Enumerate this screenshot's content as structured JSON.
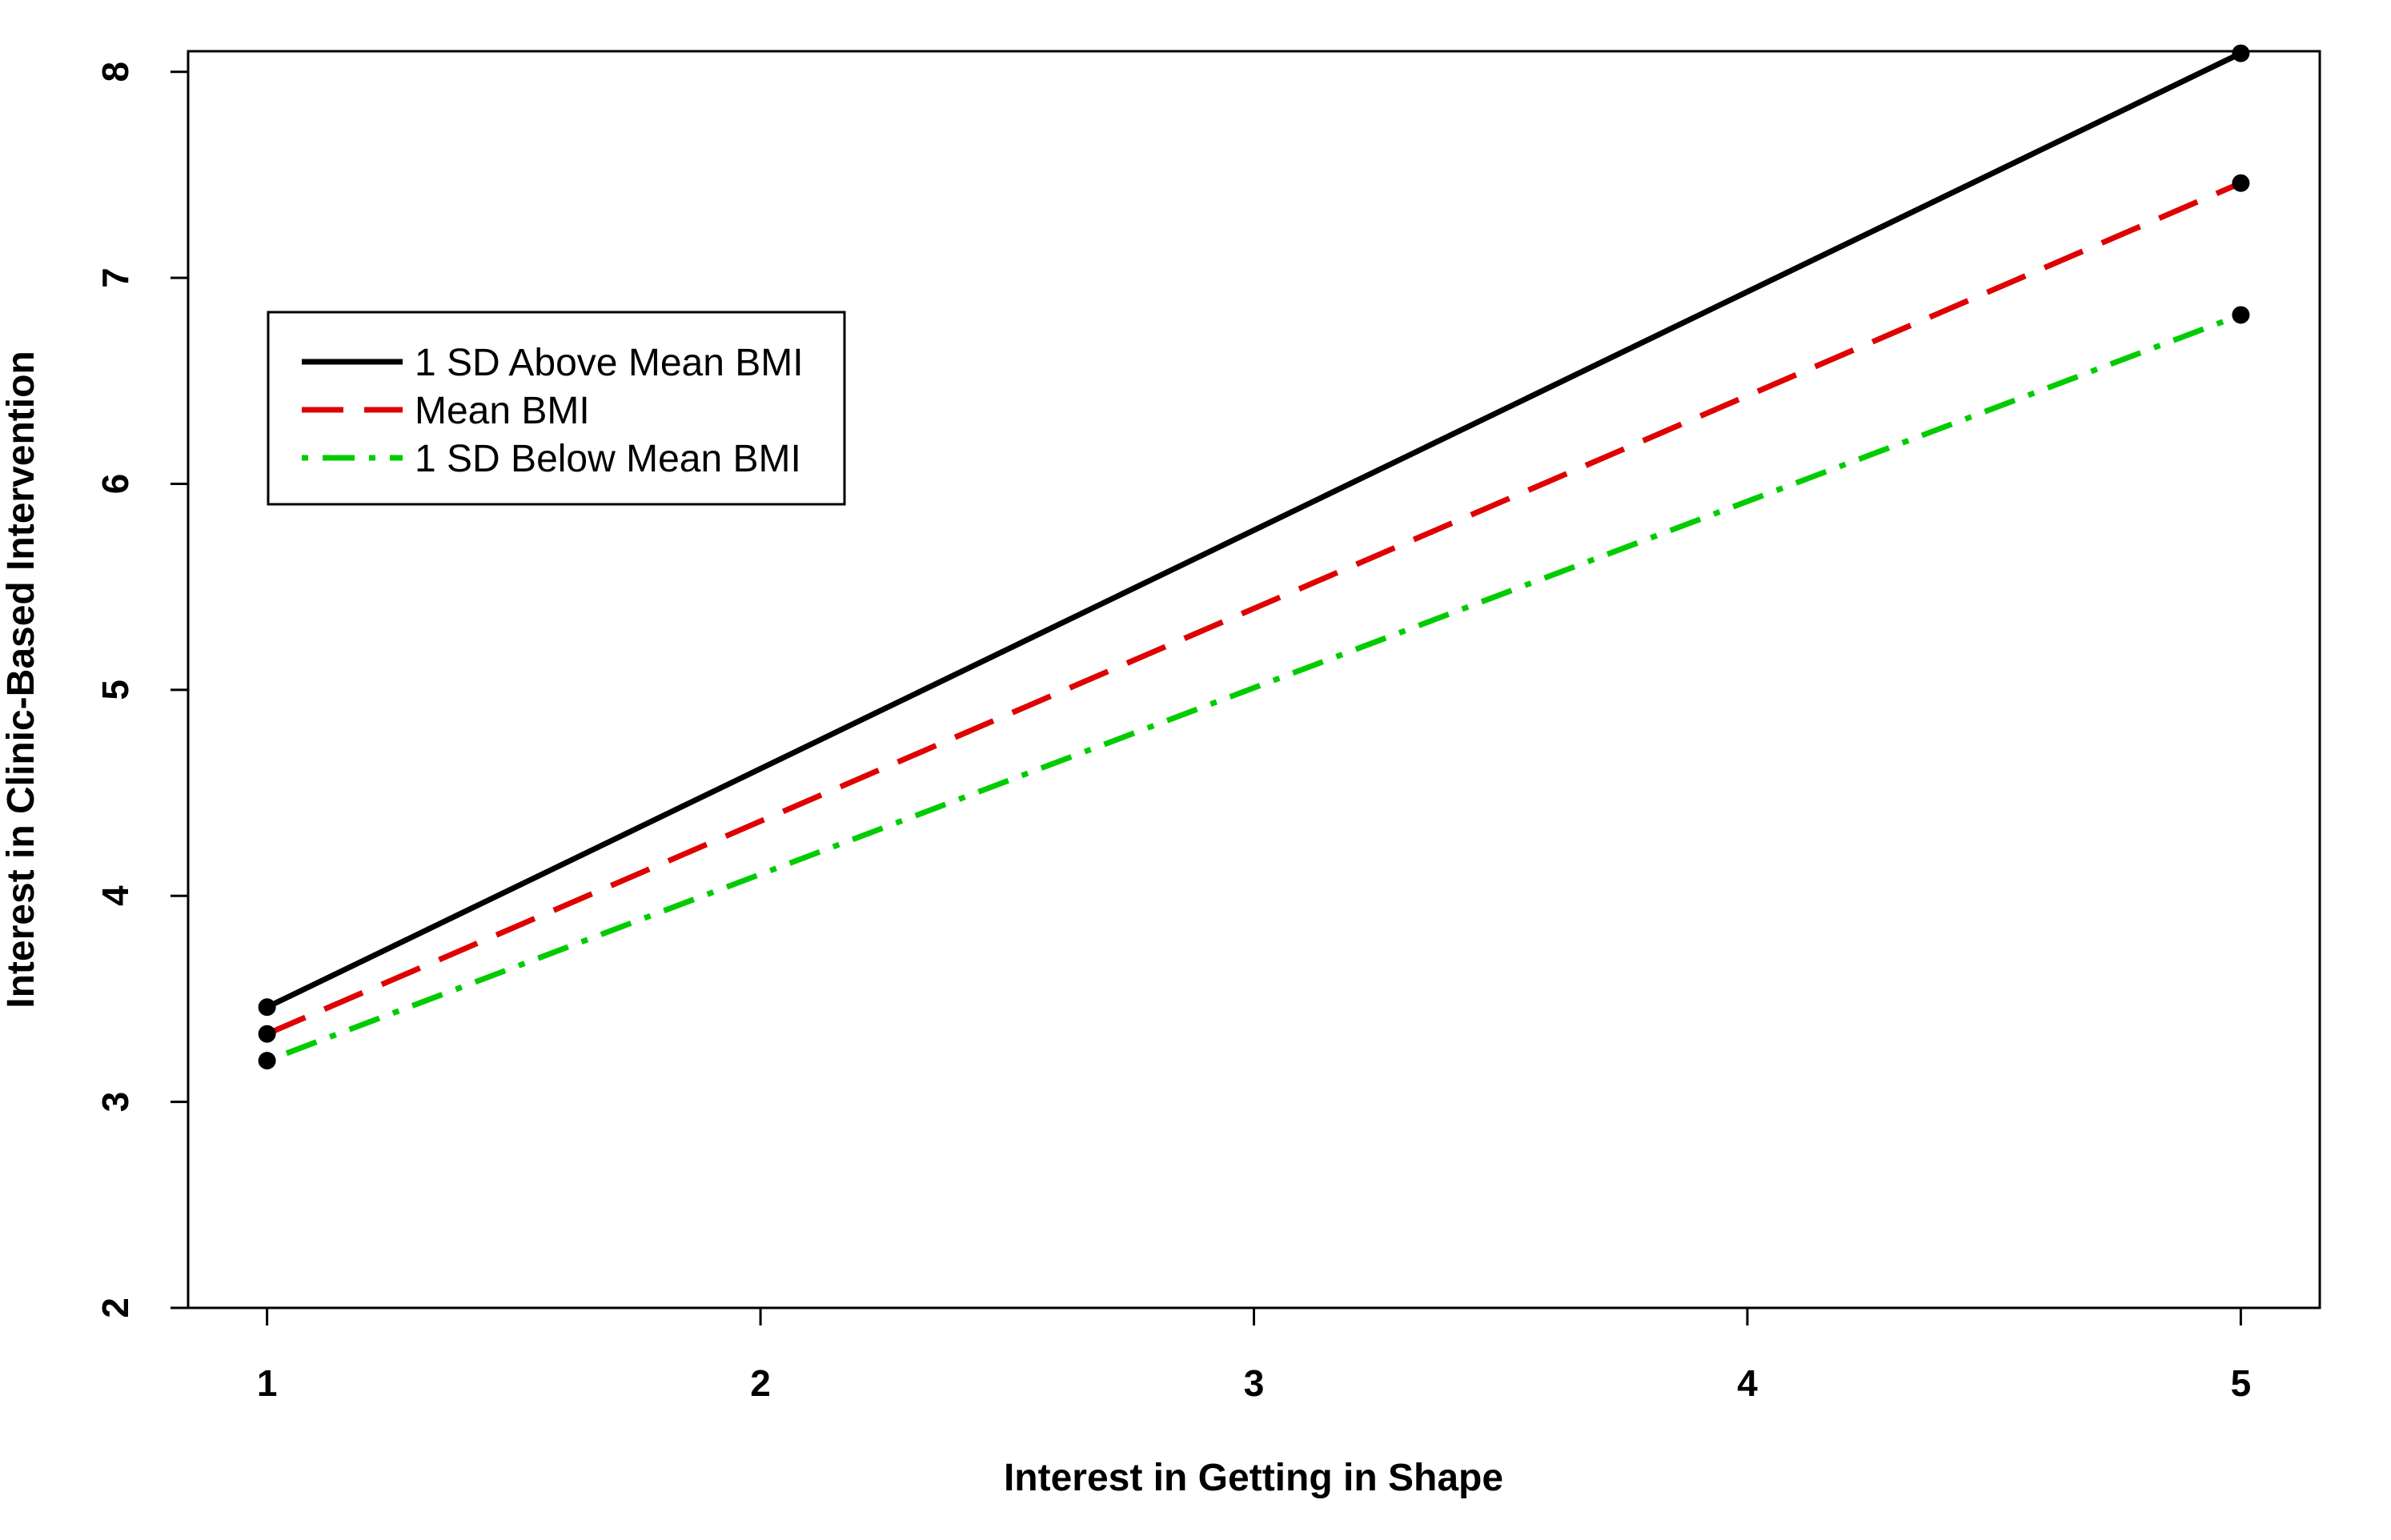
{
  "chart_data": {
    "type": "line",
    "title": "",
    "xlabel": "Interest in Getting in Shape",
    "ylabel": "Interest in Clinic-Based Intervention",
    "xlim": [
      0.84,
      5.16
    ],
    "ylim": [
      2.0,
      8.1
    ],
    "xticks": [
      1,
      2,
      3,
      4,
      5
    ],
    "yticks": [
      2,
      3,
      4,
      5,
      6,
      7,
      8
    ],
    "grid": false,
    "legend_position": "top-left",
    "series": [
      {
        "name": "1 SD Above Mean BMI",
        "color": "#000000",
        "dash": "solid",
        "x": [
          1,
          5
        ],
        "y": [
          3.46,
          8.09
        ]
      },
      {
        "name": "Mean BMI",
        "color": "#DF0000",
        "dash": "dashed",
        "x": [
          1,
          5
        ],
        "y": [
          3.33,
          7.46
        ]
      },
      {
        "name": "1 SD Below Mean BMI",
        "color": "#00CC00",
        "dash": "dotdash",
        "x": [
          1,
          5
        ],
        "y": [
          3.2,
          6.82
        ]
      }
    ]
  }
}
